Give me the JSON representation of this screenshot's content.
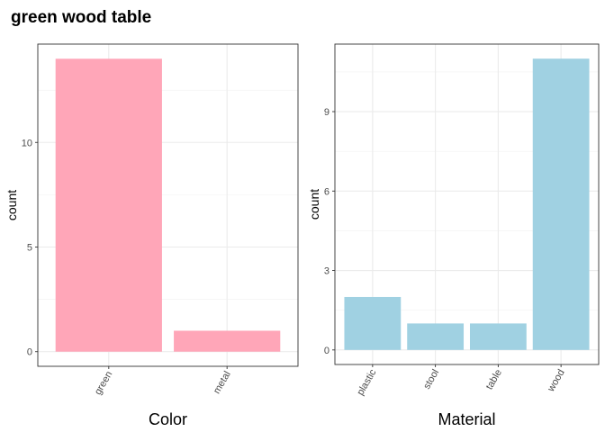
{
  "title": "green wood table",
  "chart_data": [
    {
      "type": "bar",
      "categories": [
        "green",
        "metal"
      ],
      "values": [
        14,
        1
      ],
      "xlabel": "Color",
      "ylabel": "count",
      "ylim": [
        -0.7,
        14.7
      ],
      "yticks": [
        0,
        5,
        10
      ],
      "bar_color": "#FFA6B8",
      "grid": true
    },
    {
      "type": "bar",
      "categories": [
        "plastic",
        "stool",
        "table",
        "wood"
      ],
      "values": [
        2,
        1,
        1,
        11
      ],
      "xlabel": "Material",
      "ylabel": "count",
      "ylim": [
        -0.55,
        11.55
      ],
      "yticks": [
        0,
        3,
        6,
        9
      ],
      "bar_color": "#A0D1E2",
      "grid": true
    }
  ]
}
